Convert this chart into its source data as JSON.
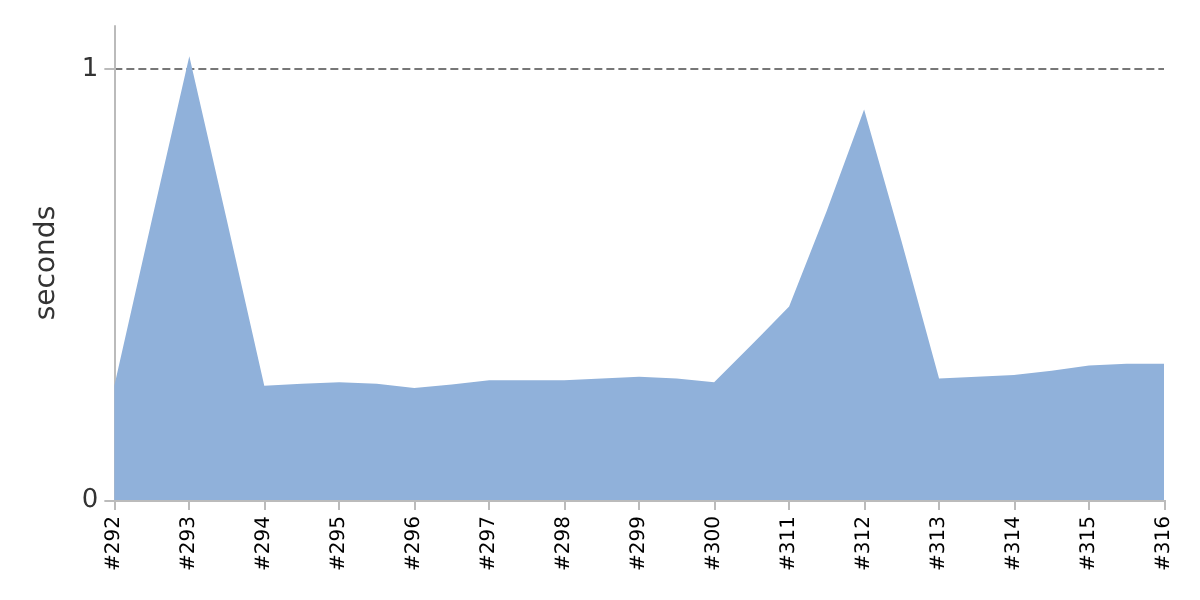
{
  "chart_data": {
    "type": "area",
    "ylabel": "seconds",
    "categories": [
      "#292",
      null,
      "#293",
      null,
      "#294",
      null,
      "#295",
      null,
      "#296",
      null,
      "#297",
      null,
      "#298",
      null,
      "#299",
      null,
      "#300",
      null,
      "#311",
      null,
      "#312",
      null,
      "#313",
      null,
      "#314",
      null,
      "#315",
      null,
      "#316"
    ],
    "series": [
      {
        "color": "#90b1da",
        "values": [
          0.265,
          0.65,
          1.03,
          0.65,
          0.265,
          0.27,
          0.273,
          0.27,
          0.26,
          0.268,
          0.278,
          0.278,
          0.278,
          0.282,
          0.286,
          0.282,
          0.273,
          0.36,
          0.449,
          0.67,
          0.906,
          0.6,
          0.282,
          0.286,
          0.29,
          0.3,
          0.312,
          0.316,
          0.316
        ]
      }
    ],
    "ylim": [
      0,
      1.1
    ],
    "yticks": [
      0,
      1
    ],
    "grid": "y"
  }
}
